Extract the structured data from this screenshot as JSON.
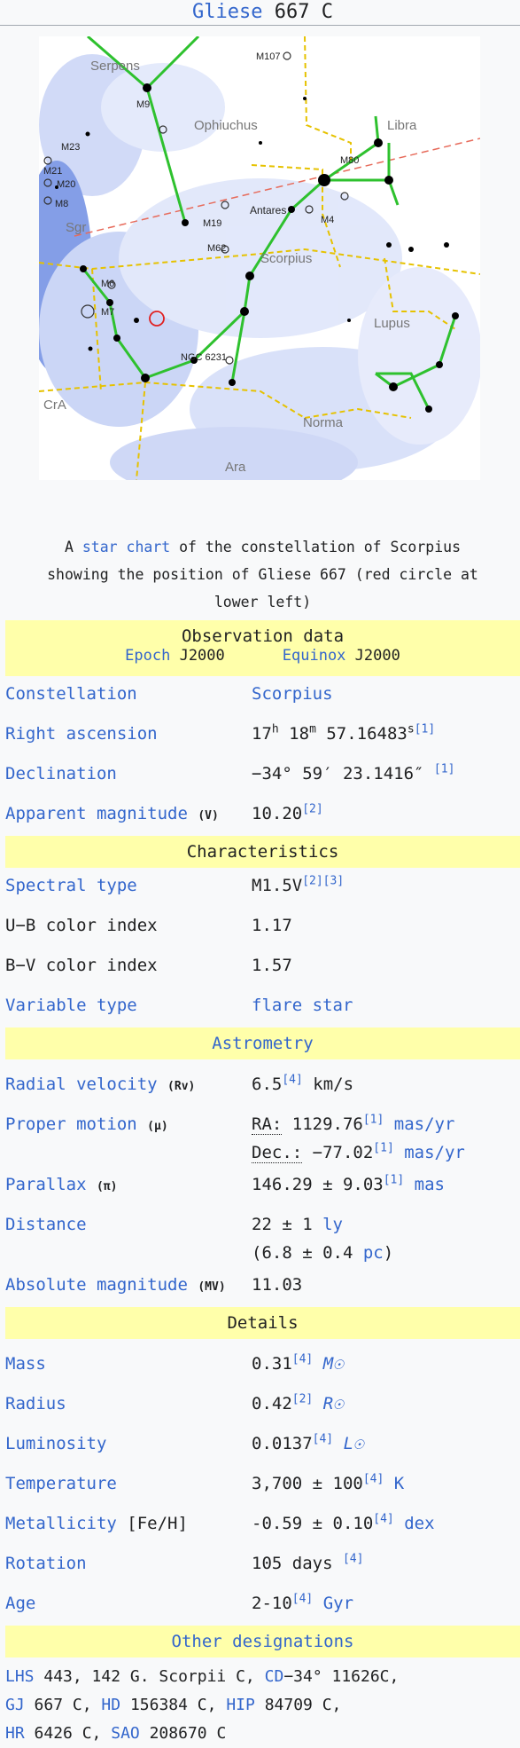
{
  "title": {
    "name": "Gliese",
    "number": "667 C"
  },
  "starchart": {
    "labels": {
      "serpens": "Serpens",
      "ophiuchus": "Ophiuchus",
      "libra": "Libra",
      "scorpius": "Scorpius",
      "lupus": "Lupus",
      "norma": "Norma",
      "ara": "Ara",
      "sgr": "Sgr",
      "cra": "CrA",
      "antares": "Antares",
      "m107": "M107",
      "m9": "M9",
      "m23": "M23",
      "m21": "M21",
      "m20": "M20",
      "m8": "M8",
      "m80": "M80",
      "m4": "M4",
      "m19": "M19",
      "m62": "M62",
      "m6": "M6",
      "m7": "M7",
      "ngc6231": "NGC 6231"
    }
  },
  "caption": {
    "prefix": "A",
    "link1": "star chart",
    "middle": "of the constellation of Scorpius showing the position of Gliese 667 (red circle at lower left)"
  },
  "observation": {
    "heading": "Observation data",
    "epoch_label": "Epoch",
    "epoch_value": "J2000",
    "equinox_label": "Equinox",
    "equinox_value": "J2000",
    "constellation_label": "Constellation",
    "constellation_value": "Scorpius",
    "ra_label": "Right ascension",
    "ra_h": "17",
    "ra_m": "18",
    "ra_s": "57.16483",
    "ra_ref": "[1]",
    "dec_label": "Declination",
    "dec_value": "−34°  59′  23.1416″",
    "dec_ref": "[1]",
    "appmag_label": "Apparent magnitude",
    "appmag_sym": "(V)",
    "appmag_value": "10.20",
    "appmag_ref": "[2]"
  },
  "characteristics": {
    "heading": "Characteristics",
    "spectral_label": "Spectral type",
    "spectral_value": "M1.5V",
    "spectral_ref": "[2][3]",
    "ub_label": "U−B color index",
    "ub_value": "1.17",
    "bv_label": "B−V color index",
    "bv_value": "1.57",
    "variable_label": "Variable type",
    "variable_value": "flare star"
  },
  "astrometry": {
    "heading": "Astrometry",
    "rv_label": "Radial velocity",
    "rv_sym": "(Rv)",
    "rv_value": "6.5",
    "rv_ref": "[4]",
    "rv_unit": "km/s",
    "pm_label": "Proper motion",
    "pm_sym": "(μ)",
    "pm_ra_label": "RA:",
    "pm_ra_value": "1129.76",
    "pm_ra_ref": "[1]",
    "pm_ra_unit": "mas/yr",
    "pm_dec_label": "Dec.:",
    "pm_dec_value": "−77.02",
    "pm_dec_ref": "[1]",
    "pm_dec_unit": "mas/yr",
    "parallax_label": "Parallax",
    "parallax_sym": "(π)",
    "parallax_value": "146.29 ± 9.03",
    "parallax_ref": "[1]",
    "parallax_unit": "mas",
    "distance_label": "Distance",
    "distance_ly": "22 ± 1",
    "distance_ly_unit": "ly",
    "distance_pc": "(6.8 ± 0.4",
    "distance_pc_unit": "pc",
    "distance_pc_close": ")",
    "absmag_label": "Absolute magnitude",
    "absmag_sym": "(MV)",
    "absmag_value": "11.03"
  },
  "details": {
    "heading": "Details",
    "mass_label": "Mass",
    "mass_value": "0.31",
    "mass_ref": "[4]",
    "mass_unit": "M☉",
    "radius_label": "Radius",
    "radius_value": "0.42",
    "radius_ref": "[2]",
    "radius_unit": "R☉",
    "lum_label": "Luminosity",
    "lum_value": "0.0137",
    "lum_ref": "[4]",
    "lum_unit": "L☉",
    "temp_label": "Temperature",
    "temp_value": "3,700 ± 100",
    "temp_ref": "[4]",
    "temp_unit": "K",
    "metal_label": "Metallicity",
    "metal_sym": "[Fe/H]",
    "metal_value": "-0.59 ± 0.10",
    "metal_ref": "[4]",
    "metal_unit": "dex",
    "rot_label": "Rotation",
    "rot_value": "105 days",
    "rot_ref": "[4]",
    "age_label": "Age",
    "age_value": "2-10",
    "age_ref": "[4]",
    "age_unit": "Gyr"
  },
  "designations": {
    "heading": "Other designations",
    "lhs": "LHS",
    "lhs_rest": "443, 142 G. Scorpii C,",
    "cd": "CD",
    "cd_rest": "−34° 11626C,",
    "gj": "GJ",
    "gj_rest": "667 C,",
    "hd": "HD",
    "hd_rest": "156384 C,",
    "hip": "HIP",
    "hip_rest": "84709 C,",
    "hr": "HR",
    "hr_rest": "6426 C,",
    "sao": "SAO",
    "sao_rest": "208670 C"
  },
  "colors": {
    "link": "#3366cc",
    "header_bg": "#ffffaa",
    "map_bg": "#b7c5f2",
    "constellation_line": "#2ec12e"
  }
}
